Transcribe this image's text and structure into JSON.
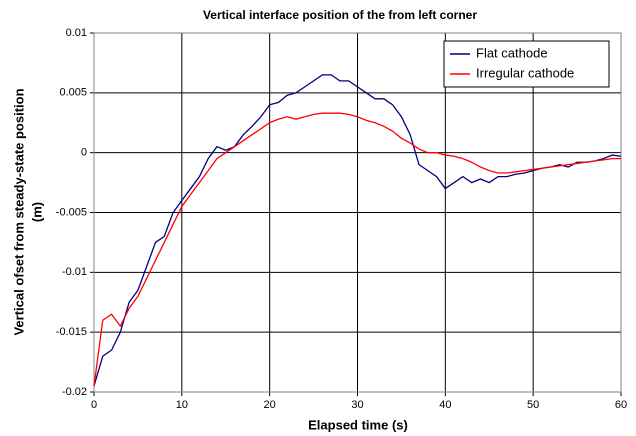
{
  "chart_data": {
    "type": "line",
    "title": "Vertical interface position of the from left corner",
    "xlabel": "Elapsed time (s)",
    "ylabel": [
      "Vertical ofset from steady-state position",
      "(m)"
    ],
    "x": [
      0,
      1,
      2,
      3,
      4,
      5,
      6,
      7,
      8,
      9,
      10,
      11,
      12,
      13,
      14,
      15,
      16,
      17,
      18,
      19,
      20,
      21,
      22,
      23,
      24,
      25,
      26,
      27,
      28,
      29,
      30,
      31,
      32,
      33,
      34,
      35,
      36,
      37,
      38,
      39,
      40,
      41,
      42,
      43,
      44,
      45,
      46,
      47,
      48,
      49,
      50,
      51,
      52,
      53,
      54,
      55,
      56,
      57,
      58,
      59,
      60
    ],
    "series": [
      {
        "name": "Flat cathode",
        "color": "#000080",
        "values": [
          -0.0195,
          -0.017,
          -0.0165,
          -0.015,
          -0.0125,
          -0.0115,
          -0.0095,
          -0.0075,
          -0.007,
          -0.005,
          -0.004,
          -0.003,
          -0.002,
          -0.0005,
          0.0005,
          0.0002,
          0.0005,
          0.0015,
          0.0022,
          0.003,
          0.004,
          0.0042,
          0.0048,
          0.005,
          0.0055,
          0.006,
          0.0065,
          0.0065,
          0.006,
          0.006,
          0.0055,
          0.005,
          0.0045,
          0.0045,
          0.004,
          0.003,
          0.0015,
          -0.001,
          -0.0015,
          -0.002,
          -0.003,
          -0.0025,
          -0.002,
          -0.0025,
          -0.0022,
          -0.0025,
          -0.002,
          -0.002,
          -0.0018,
          -0.0017,
          -0.0015,
          -0.0013,
          -0.0012,
          -0.001,
          -0.0012,
          -0.0008,
          -0.0008,
          -0.0007,
          -0.0005,
          -0.0002,
          -0.0003
        ]
      },
      {
        "name": "Irregular cathode",
        "color": "#ff0000",
        "values": [
          -0.0195,
          -0.014,
          -0.0135,
          -0.0145,
          -0.013,
          -0.012,
          -0.0105,
          -0.009,
          -0.0075,
          -0.006,
          -0.0045,
          -0.0035,
          -0.0025,
          -0.0015,
          -0.0005,
          0,
          0.0005,
          0.001,
          0.0015,
          0.002,
          0.0025,
          0.0028,
          0.003,
          0.0028,
          0.003,
          0.0032,
          0.0033,
          0.0033,
          0.0033,
          0.0032,
          0.003,
          0.0027,
          0.0025,
          0.0022,
          0.0018,
          0.0012,
          0.0008,
          0.0003,
          0,
          0,
          -0.0002,
          -0.0003,
          -0.0005,
          -0.0008,
          -0.0012,
          -0.0015,
          -0.0017,
          -0.0017,
          -0.0016,
          -0.0015,
          -0.0014,
          -0.0013,
          -0.0012,
          -0.0011,
          -0.001,
          -0.0009,
          -0.0008,
          -0.0007,
          -0.0006,
          -0.0005,
          -0.0005
        ]
      }
    ],
    "xlim": [
      0,
      60
    ],
    "xticks": [
      0,
      10,
      20,
      30,
      40,
      50,
      60
    ],
    "ylim": [
      -0.02,
      0.01
    ],
    "yticks": [
      -0.02,
      -0.015,
      -0.01,
      -0.005,
      0,
      0.005,
      0.01
    ],
    "grid": true,
    "legend": "upper right"
  }
}
